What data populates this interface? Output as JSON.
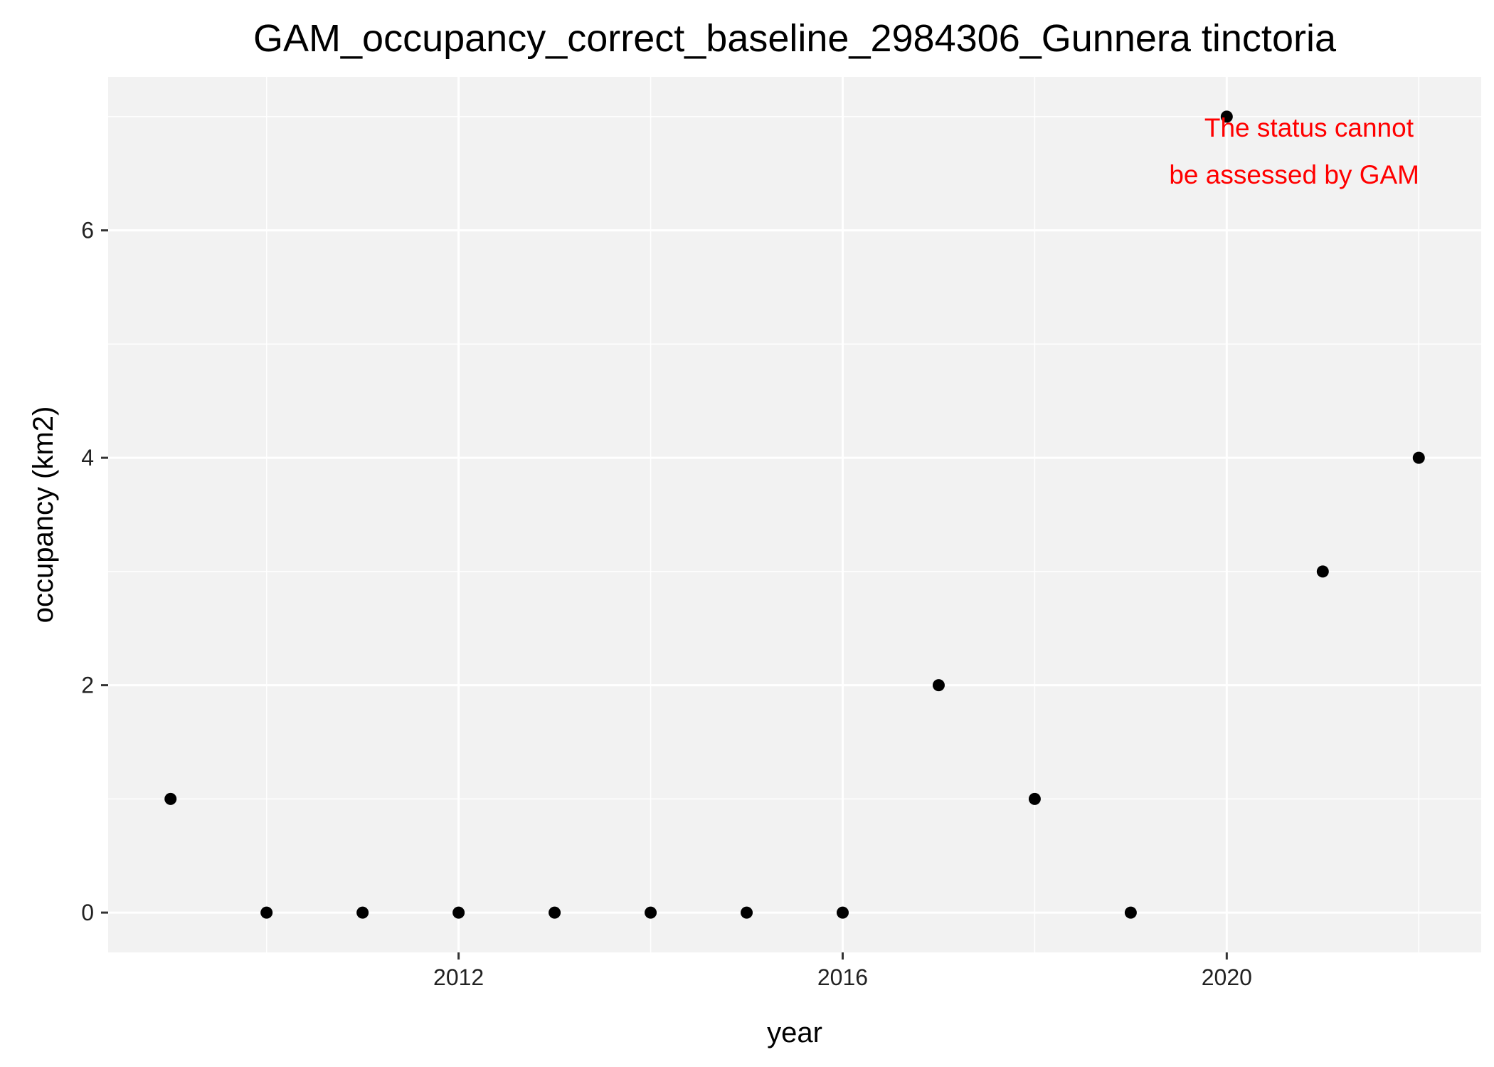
{
  "chart_data": {
    "type": "scatter",
    "title": "GAM_occupancy_correct_baseline_2984306_Gunnera tinctoria",
    "xlabel": "year",
    "ylabel": "occupancy (km2)",
    "x": [
      2009,
      2010,
      2011,
      2012,
      2013,
      2014,
      2015,
      2016,
      2017,
      2018,
      2019,
      2020,
      2021,
      2022
    ],
    "y": [
      1,
      0,
      0,
      0,
      0,
      0,
      0,
      0,
      2,
      1,
      0,
      7,
      3,
      4
    ],
    "xlim": [
      2008.35,
      2022.65
    ],
    "ylim": [
      -0.35,
      7.35
    ],
    "x_major_ticks": [
      2012,
      2016,
      2020
    ],
    "x_minor_ticks": [
      2010,
      2014,
      2018,
      2022
    ],
    "y_major_ticks": [
      0,
      2,
      4,
      6
    ],
    "y_minor_ticks": [
      1,
      3,
      5,
      7
    ],
    "x_tick_labels": [
      "2012",
      "2016",
      "2020"
    ],
    "y_tick_labels": [
      "0",
      "2",
      "4",
      "6"
    ],
    "annotation": {
      "lines": [
        "The status cannot",
        "be assessed by GAM"
      ],
      "color": "#ff0000"
    },
    "grid": true,
    "panel_background": "#f2f2f2",
    "point_color": "#000000"
  }
}
